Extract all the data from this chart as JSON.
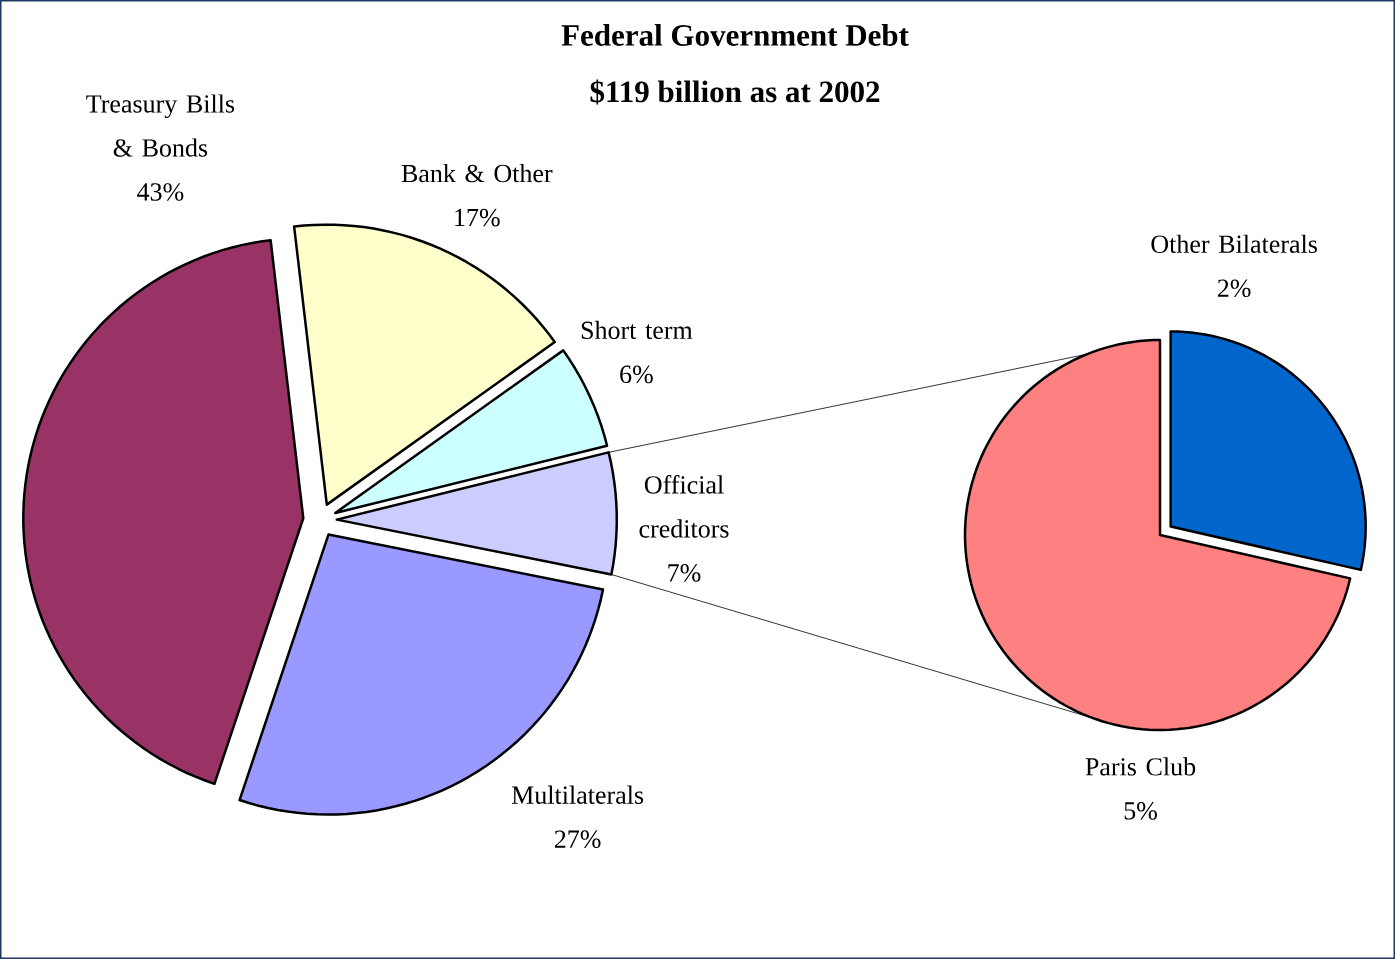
{
  "chart_data": [
    {
      "type": "pie",
      "title": "Federal Government Debt",
      "subtitle": "$119 billion as at 2002",
      "categories": [
        "Bank & Other",
        "Short term",
        "Official creditors",
        "Multilaterals",
        "Treasury Bills & Bonds"
      ],
      "values": [
        17,
        6,
        7,
        27,
        43
      ],
      "colors": [
        "#ffffcc",
        "#ccffff",
        "#ccccff",
        "#9999ff",
        "#993366"
      ],
      "value_labels": [
        "17%",
        "6%",
        "7%",
        "27%",
        "43%"
      ]
    },
    {
      "type": "pie",
      "categories": [
        "Other Bilaterals",
        "Paris Club"
      ],
      "values": [
        2,
        5
      ],
      "colors": [
        "#0066cc",
        "#ff8080"
      ],
      "value_labels": [
        "2%",
        "5%"
      ]
    }
  ]
}
